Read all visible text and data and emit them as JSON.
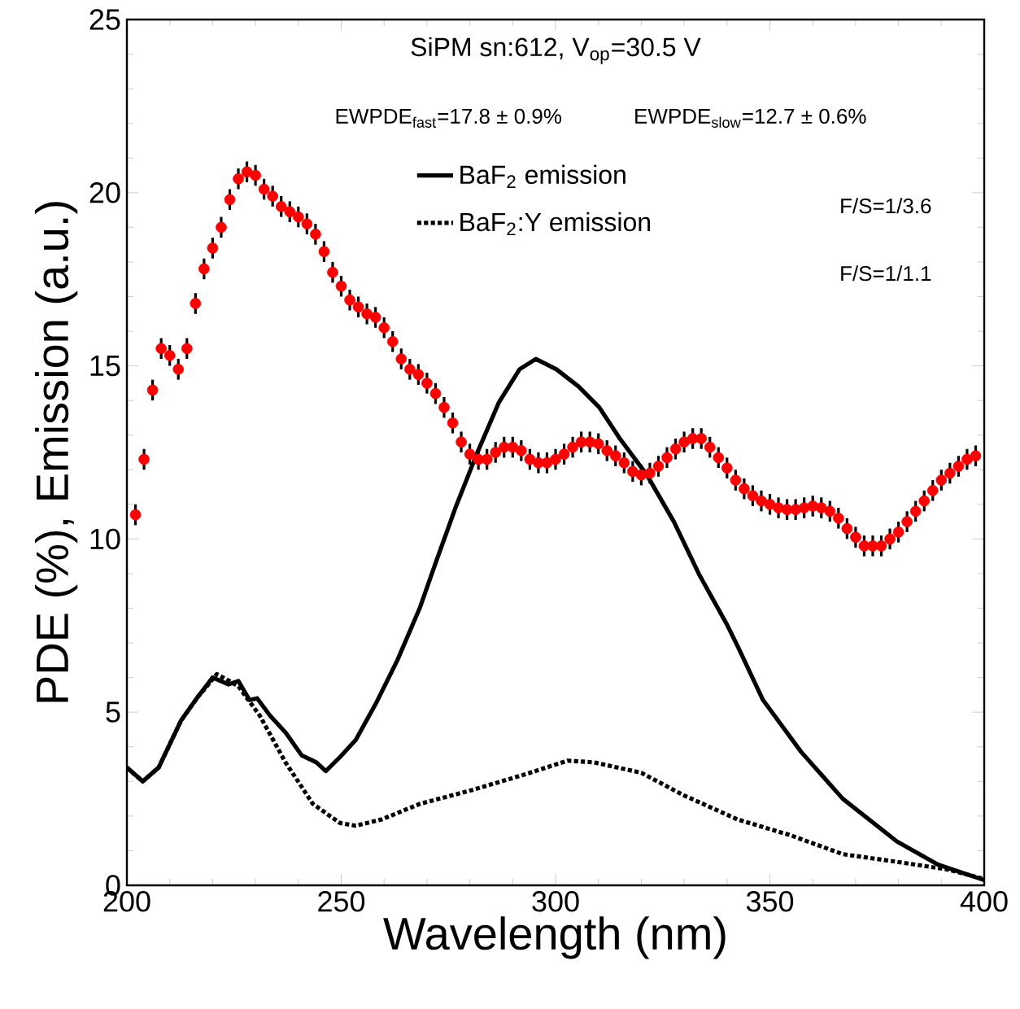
{
  "chart_data": {
    "type": "line",
    "title": "SiPM sn:612, V$_{op}$=30.5 V",
    "xlabel": "Wavelength (nm)",
    "ylabel": "PDE (%), Emission (a.u.)",
    "xlim": [
      200,
      400
    ],
    "xticks": [
      200,
      250,
      300,
      350,
      400
    ],
    "ylim": [
      0,
      25
    ],
    "yticks": [
      0,
      5,
      10,
      15,
      20,
      25
    ],
    "grid": false,
    "legend": "top right",
    "annotations": [
      "EWPDE$_{fast}$=17.8 ± 0.9%",
      "EWPDE$_{slow}$=12.7 ± 0.6%",
      "F/S=1/3.6",
      "F/S=1/1.1"
    ],
    "series": [
      {
        "type": "scatter",
        "color": "#ff0000",
        "x": [
          202,
          204,
          206,
          208,
          210,
          212,
          214,
          216,
          218,
          220,
          222,
          224,
          226,
          228,
          230,
          232,
          234,
          236,
          238,
          240,
          242,
          244,
          246,
          248,
          250,
          252,
          254,
          256,
          258,
          260,
          262,
          264,
          266,
          268,
          270,
          272,
          274,
          276,
          278,
          280,
          282,
          284,
          286,
          288,
          290,
          292,
          294,
          296,
          298,
          300,
          302,
          304,
          306,
          308,
          310,
          312,
          314,
          316,
          318,
          320,
          322,
          324,
          326,
          328,
          330,
          332,
          334,
          336,
          338,
          340,
          342,
          344,
          346,
          348,
          350,
          352,
          354,
          356,
          358,
          360,
          362,
          364,
          366,
          368,
          370,
          372,
          374,
          376,
          378,
          380,
          382,
          384,
          386,
          388,
          390,
          392,
          394,
          396,
          398
        ],
        "values": [
          10.7,
          12.3,
          14.3,
          15.5,
          15.3,
          14.9,
          15.5,
          16.8,
          17.8,
          18.4,
          19.0,
          19.8,
          20.4,
          20.6,
          20.5,
          20.1,
          19.9,
          19.6,
          19.45,
          19.3,
          19.1,
          18.8,
          18.3,
          17.7,
          17.3,
          16.9,
          16.7,
          16.5,
          16.4,
          16.1,
          15.7,
          15.2,
          14.9,
          14.75,
          14.5,
          14.2,
          13.8,
          13.35,
          12.8,
          12.45,
          12.3,
          12.3,
          12.5,
          12.65,
          12.65,
          12.55,
          12.3,
          12.2,
          12.2,
          12.3,
          12.45,
          12.65,
          12.8,
          12.8,
          12.75,
          12.55,
          12.4,
          12.2,
          11.95,
          11.85,
          11.9,
          12.1,
          12.35,
          12.6,
          12.8,
          12.9,
          12.9,
          12.65,
          12.35,
          12.05,
          11.7,
          11.45,
          11.25,
          11.1,
          11.0,
          10.9,
          10.85,
          10.85,
          10.9,
          10.95,
          10.9,
          10.8,
          10.6,
          10.3,
          10.05,
          9.8,
          9.8,
          9.8,
          10.0,
          10.2,
          10.5,
          10.8,
          11.1,
          11.4,
          11.7,
          11.9,
          12.1,
          12.3,
          12.4
        ],
        "errors": [
          0.3,
          0.3,
          0.3,
          0.3,
          0.3,
          0.3,
          0.3,
          0.3,
          0.3,
          0.3,
          0.3,
          0.3,
          0.3,
          0.3,
          0.3,
          0.3,
          0.3,
          0.3,
          0.3,
          0.3,
          0.3,
          0.3,
          0.3,
          0.3,
          0.3,
          0.3,
          0.3,
          0.3,
          0.3,
          0.3,
          0.3,
          0.3,
          0.3,
          0.3,
          0.3,
          0.3,
          0.3,
          0.3,
          0.3,
          0.3,
          0.3,
          0.3,
          0.3,
          0.3,
          0.3,
          0.3,
          0.3,
          0.3,
          0.3,
          0.3,
          0.3,
          0.3,
          0.3,
          0.3,
          0.3,
          0.3,
          0.3,
          0.3,
          0.3,
          0.3,
          0.3,
          0.3,
          0.3,
          0.3,
          0.3,
          0.3,
          0.3,
          0.3,
          0.3,
          0.3,
          0.3,
          0.3,
          0.3,
          0.3,
          0.3,
          0.3,
          0.3,
          0.3,
          0.3,
          0.3,
          0.3,
          0.3,
          0.3,
          0.3,
          0.3,
          0.3,
          0.3,
          0.3,
          0.3,
          0.3,
          0.3,
          0.3,
          0.3,
          0.3,
          0.3,
          0.3,
          0.3,
          0.3,
          0.3
        ]
      },
      {
        "type": "line",
        "marker": "none",
        "name": "BaF$_{2}$ emission",
        "color": "#000000",
        "line_style": "solid",
        "x": [
          200,
          203.7,
          207.4,
          212.6,
          216.3,
          220,
          223.7,
          226,
          228.6,
          230.4,
          233.4,
          237.1,
          240.8,
          244.2,
          246.4,
          249.7,
          253.4,
          258.3,
          263.1,
          268.3,
          272,
          276.8,
          281.6,
          286.8,
          291.6,
          295.4,
          300.2,
          305.4,
          310.2,
          315,
          321.3,
          327.6,
          333.6,
          339.9,
          342.5,
          348.4,
          357.3,
          367,
          379.6,
          389.2,
          400
        ],
        "values": [
          3.4,
          3.0,
          3.4,
          4.75,
          5.4,
          6.0,
          5.8,
          5.9,
          5.35,
          5.4,
          4.9,
          4.4,
          3.75,
          3.55,
          3.3,
          3.7,
          4.2,
          5.3,
          6.5,
          8.0,
          9.3,
          10.95,
          12.45,
          13.95,
          14.9,
          15.2,
          14.9,
          14.4,
          13.8,
          12.9,
          11.85,
          10.5,
          8.95,
          7.55,
          6.9,
          5.35,
          3.85,
          2.5,
          1.27,
          0.6,
          0.15
        ]
      },
      {
        "type": "line",
        "marker": "none",
        "name": "BaF$_{2}$:Y emission",
        "color": "#000000",
        "line_style": "dotted",
        "x": [
          200,
          203.7,
          207.4,
          212.6,
          216.3,
          221,
          226,
          231,
          237,
          243.4,
          249.7,
          253.4,
          259.4,
          268.3,
          280.5,
          292.8,
          302.8,
          309,
          320,
          329.9,
          342.5,
          354.7,
          367,
          379.6,
          391.8,
          400
        ],
        "values": [
          3.4,
          3.0,
          3.4,
          4.75,
          5.4,
          6.1,
          5.75,
          4.9,
          3.55,
          2.35,
          1.8,
          1.72,
          1.9,
          2.35,
          2.75,
          3.2,
          3.6,
          3.55,
          3.25,
          2.6,
          1.9,
          1.45,
          0.9,
          0.68,
          0.45,
          0.18
        ]
      }
    ]
  }
}
